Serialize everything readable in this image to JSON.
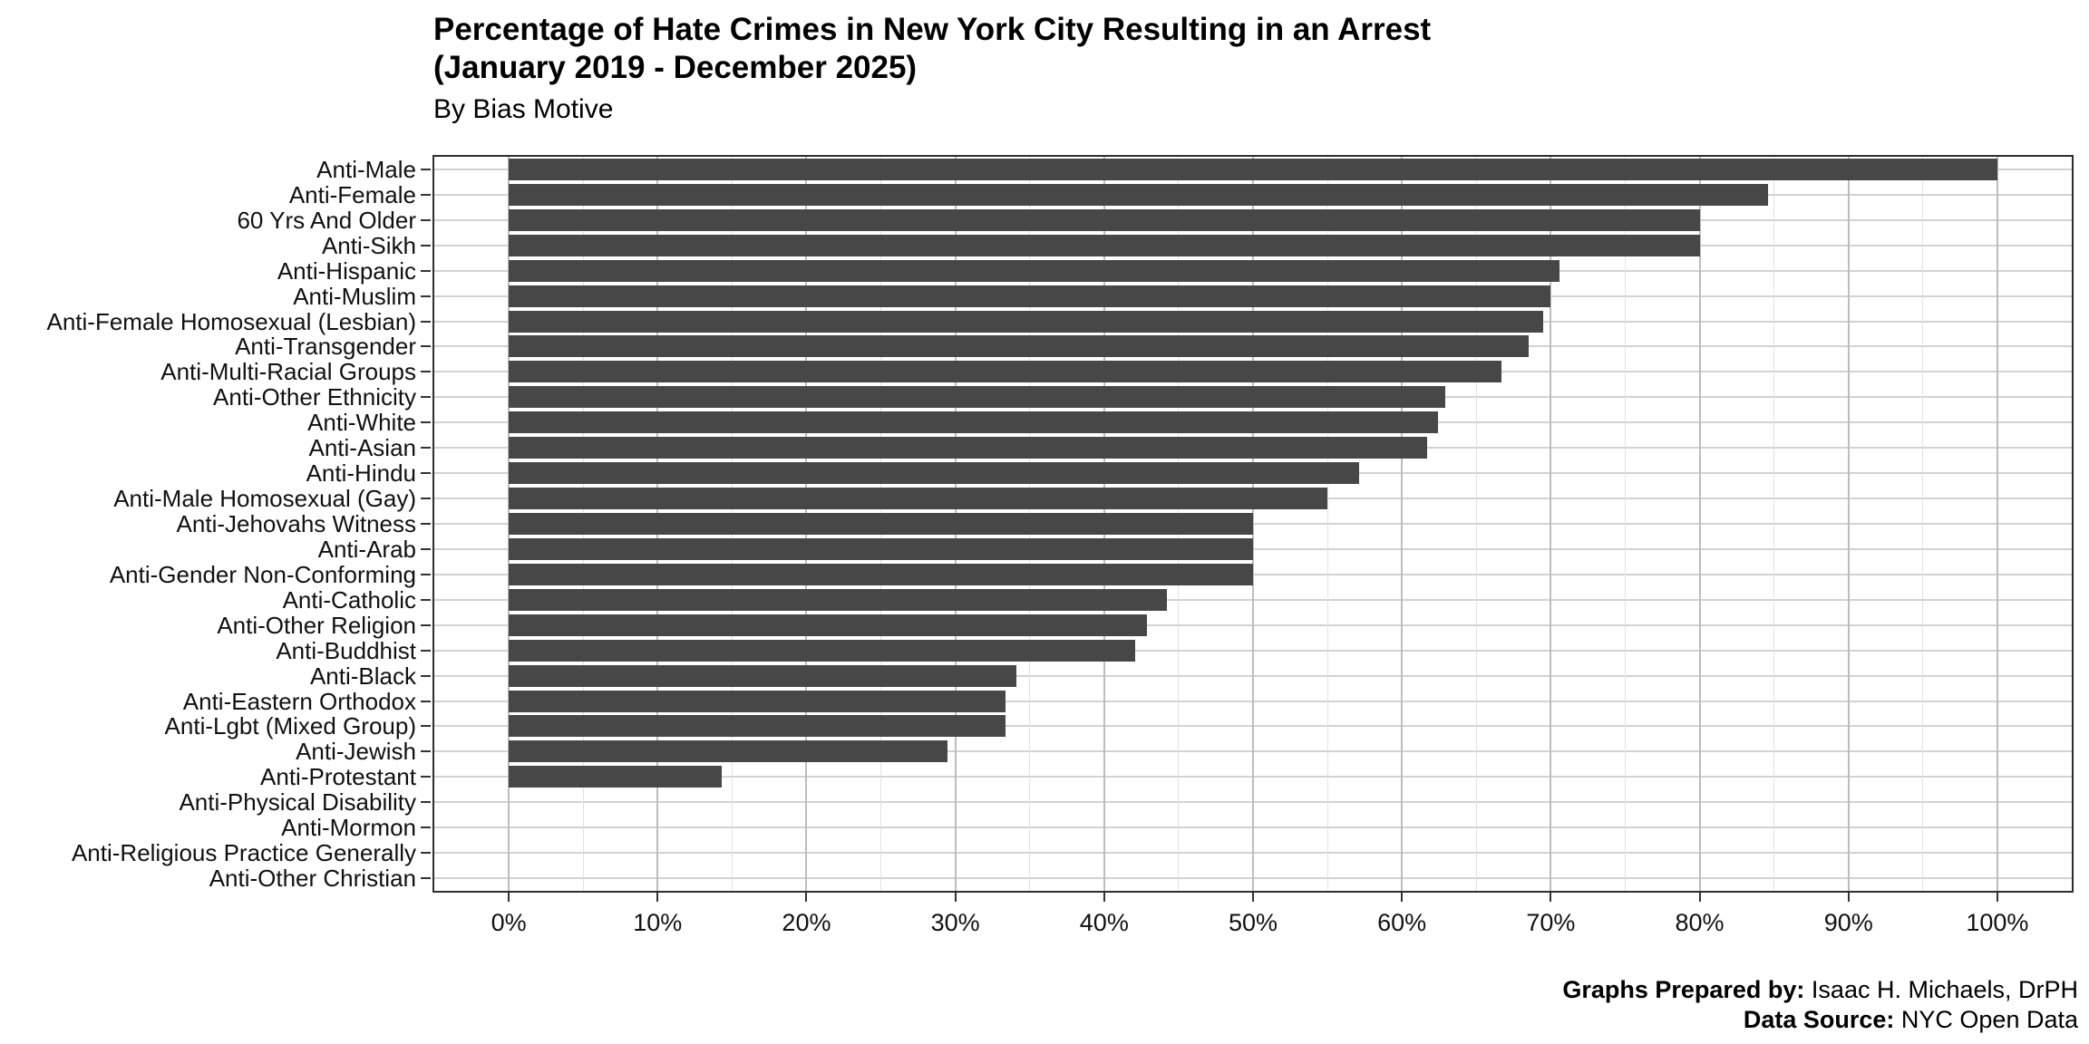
{
  "header": {
    "title_line1": "Percentage of Hate Crimes in New York City Resulting in an Arrest",
    "title_line2": "(January 2019 - December 2025)",
    "subtitle": "By Bias Motive"
  },
  "caption": {
    "prepared_by_label": "Graphs Prepared by:",
    "prepared_by_value": " Isaac H. Michaels, DrPH",
    "data_source_label": "Data Source:",
    "data_source_value": " NYC Open Data"
  },
  "chart_data": {
    "type": "bar",
    "orientation": "horizontal",
    "title": "Percentage of Hate Crimes in New York City Resulting in an Arrest (January 2019 - December 2025)",
    "subtitle": "By Bias Motive",
    "xlabel": "",
    "ylabel": "",
    "xlim": [
      0,
      100
    ],
    "axis_domain": [
      -5,
      105
    ],
    "grid": "on",
    "legend": "none",
    "bar_color": "#474747",
    "major_grid_color": "#bdbdbd",
    "minor_grid_color": "#e2e2e2",
    "x_ticks": [
      0,
      10,
      20,
      30,
      40,
      50,
      60,
      70,
      80,
      90,
      100
    ],
    "x_tick_labels": [
      "0%",
      "10%",
      "20%",
      "30%",
      "40%",
      "50%",
      "60%",
      "70%",
      "80%",
      "90%",
      "100%"
    ],
    "x_minor_ticks": [
      5,
      15,
      25,
      35,
      45,
      55,
      65,
      75,
      85,
      95
    ],
    "categories": [
      "Anti-Male",
      "Anti-Female",
      "60 Yrs And Older",
      "Anti-Sikh",
      "Anti-Hispanic",
      "Anti-Muslim",
      "Anti-Female Homosexual (Lesbian)",
      "Anti-Transgender",
      "Anti-Multi-Racial Groups",
      "Anti-Other Ethnicity",
      "Anti-White",
      "Anti-Asian",
      "Anti-Hindu",
      "Anti-Male Homosexual (Gay)",
      "Anti-Jehovahs Witness",
      "Anti-Arab",
      "Anti-Gender Non-Conforming",
      "Anti-Catholic",
      "Anti-Other Religion",
      "Anti-Buddhist",
      "Anti-Black",
      "Anti-Eastern Orthodox",
      "Anti-Lgbt (Mixed Group)",
      "Anti-Jewish",
      "Anti-Protestant",
      "Anti-Physical Disability",
      "Anti-Mormon",
      "Anti-Religious Practice Generally",
      "Anti-Other Christian"
    ],
    "values": [
      100.0,
      84.6,
      80.0,
      80.0,
      70.6,
      70.0,
      69.5,
      68.5,
      66.7,
      62.9,
      62.4,
      61.7,
      57.1,
      55.0,
      50.0,
      50.0,
      50.0,
      44.2,
      42.9,
      42.1,
      34.1,
      33.4,
      33.4,
      29.5,
      14.3,
      0,
      0,
      0,
      0
    ]
  }
}
